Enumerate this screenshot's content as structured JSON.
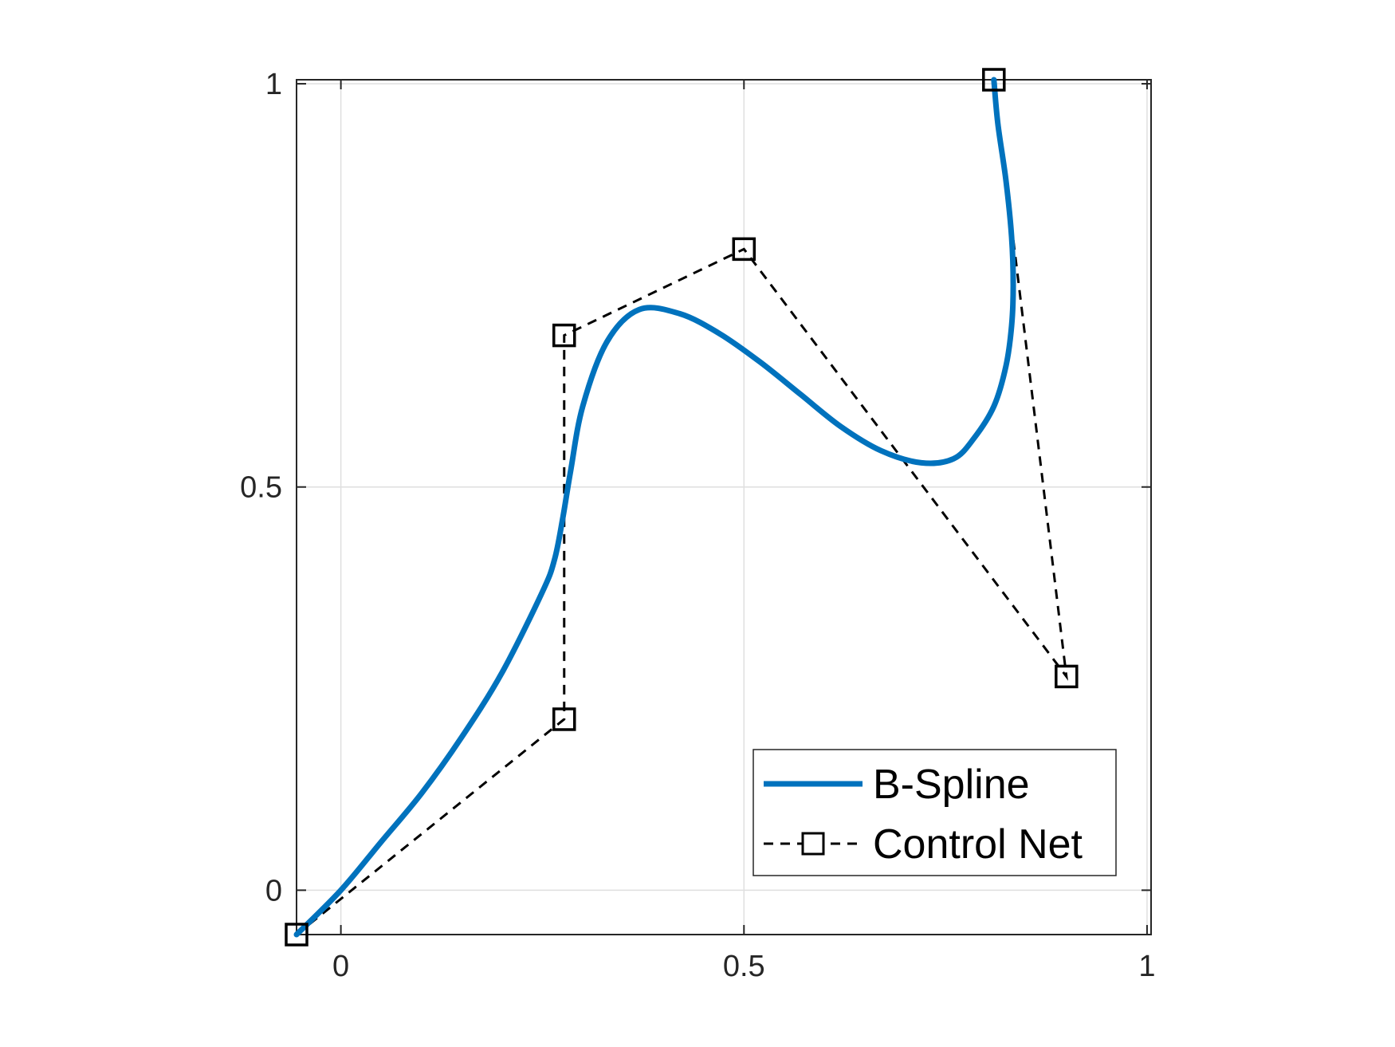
{
  "chart_data": {
    "type": "line",
    "title": "",
    "xlabel": "",
    "ylabel": "",
    "xlim": [
      -0.055,
      1.005
    ],
    "ylim": [
      -0.055,
      1.005
    ],
    "xticks": [
      0,
      0.5,
      1
    ],
    "xtick_labels": [
      "0",
      "0.5",
      "1"
    ],
    "yticks": [
      0,
      0.5,
      1
    ],
    "ytick_labels": [
      "0",
      "0.5",
      "1"
    ],
    "grid": true,
    "legend_position": "bottom-right",
    "series": [
      {
        "name": "B-Spline",
        "style": "solid",
        "color": "#0072BD",
        "x": [
          -0.055,
          0.0,
          0.05,
          0.1,
          0.15,
          0.2,
          0.25,
          0.265,
          0.275,
          0.285,
          0.3,
          0.33,
          0.37,
          0.42,
          0.47,
          0.52,
          0.57,
          0.62,
          0.67,
          0.72,
          0.76,
          0.785,
          0.81,
          0.825,
          0.832,
          0.834,
          0.832,
          0.825,
          0.815,
          0.81
        ],
        "y": [
          -0.055,
          0.0,
          0.06,
          0.12,
          0.19,
          0.27,
          0.37,
          0.41,
          0.46,
          0.52,
          0.6,
          0.68,
          0.72,
          0.715,
          0.69,
          0.655,
          0.615,
          0.575,
          0.545,
          0.53,
          0.535,
          0.56,
          0.6,
          0.65,
          0.7,
          0.75,
          0.81,
          0.88,
          0.95,
          1.005
        ]
      },
      {
        "name": "Control Net",
        "style": "dashed",
        "marker": "square",
        "color": "#000000",
        "x": [
          -0.055,
          0.277,
          0.277,
          0.5,
          0.9,
          0.81
        ],
        "y": [
          -0.055,
          0.212,
          0.688,
          0.795,
          0.265,
          1.005
        ]
      }
    ]
  },
  "legend": {
    "items": [
      {
        "label": "B-Spline"
      },
      {
        "label": "Control Net"
      }
    ]
  }
}
